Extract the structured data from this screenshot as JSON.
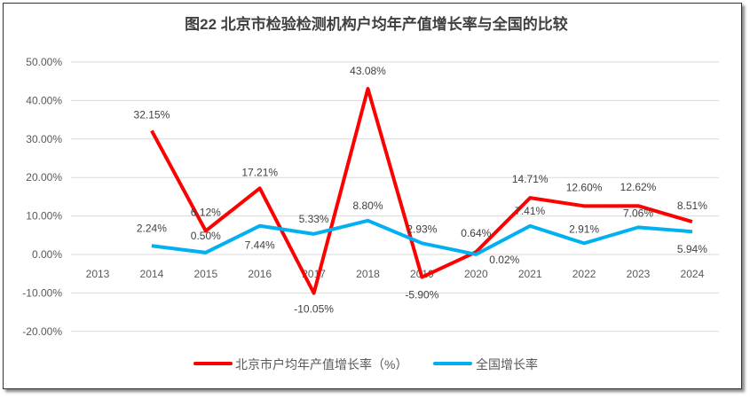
{
  "chart_data": {
    "type": "line",
    "title": "图22 北京市检验检测机构户均年产值增长率与全国的比较",
    "categories": [
      "2013",
      "2014",
      "2015",
      "2016",
      "2017",
      "2018",
      "2019",
      "2020",
      "2021",
      "2022",
      "2023",
      "2024"
    ],
    "ylim": [
      -20,
      50
    ],
    "yticks": [
      "-20.00%",
      "-10.00%",
      "0.00%",
      "10.00%",
      "20.00%",
      "30.00%",
      "40.00%",
      "50.00%"
    ],
    "grid": true,
    "legend": "bottom",
    "series": [
      {
        "name": "北京市户均年产值增长率（%）",
        "color": "#FF0000",
        "values": [
          null,
          32.15,
          6.12,
          17.21,
          -10.05,
          43.08,
          -5.9,
          0.64,
          14.71,
          12.6,
          12.62,
          8.51
        ],
        "labels": [
          "",
          "32.15%",
          "6.12%",
          "17.21%",
          "-10.05%",
          "43.08%",
          "-5.90%",
          "0.64%",
          "14.71%",
          "12.60%",
          "12.62%",
          "8.51%"
        ]
      },
      {
        "name": "全国增长率",
        "color": "#00B0F0",
        "values": [
          null,
          2.24,
          0.5,
          7.44,
          5.33,
          8.8,
          2.93,
          0.02,
          7.41,
          2.91,
          7.06,
          5.94
        ],
        "labels": [
          "",
          "2.24%",
          "0.50%",
          "7.44%",
          "5.33%",
          "8.80%",
          "2.93%",
          "0.02%",
          "7.41%",
          "2.91%",
          "7.06%",
          "5.94%"
        ]
      }
    ]
  }
}
